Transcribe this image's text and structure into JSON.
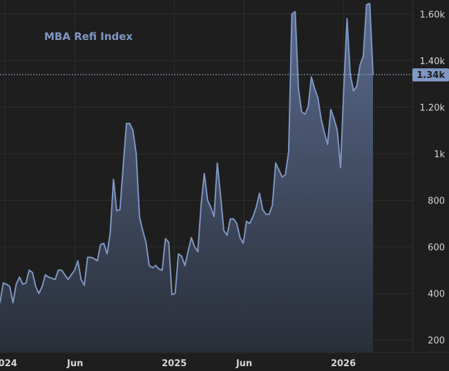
{
  "chart_data": {
    "type": "area",
    "title": "MBA Refi Index",
    "xlabel": "",
    "ylabel": "",
    "ylim": [
      150,
      1660
    ],
    "xlim": [
      "2023-12-22",
      "2026-05-30"
    ],
    "grid": true,
    "last_value_label": "1.34k",
    "last_value": 1340,
    "colors": {
      "line": "#7f97c4",
      "fill_top": "#5a6a8e",
      "fill_bottom": "#2a2f3a",
      "grid": "#2e2e2e",
      "background": "#1e1e1e",
      "badge": "#7f97c4"
    },
    "yticks": [
      {
        "value": 200,
        "label": "200"
      },
      {
        "value": 400,
        "label": "400"
      },
      {
        "value": 600,
        "label": "600"
      },
      {
        "value": 800,
        "label": "800"
      },
      {
        "value": 1000,
        "label": "1k"
      },
      {
        "value": 1200,
        "label": "1.20k"
      },
      {
        "value": 1400,
        "label": "1.40k"
      },
      {
        "value": 1600,
        "label": "1.60k"
      }
    ],
    "xticks": [
      {
        "date": "2024-01-01",
        "label": "2024"
      },
      {
        "date": "2024-06-01",
        "label": "Jun"
      },
      {
        "date": "2025-01-01",
        "label": "2025"
      },
      {
        "date": "2025-06-01",
        "label": "Jun"
      },
      {
        "date": "2026-01-01",
        "label": "2026"
      }
    ],
    "series": [
      {
        "points": [
          [
            "2023-12-22",
            360
          ],
          [
            "2023-12-29",
            445
          ],
          [
            "2024-01-05",
            440
          ],
          [
            "2024-01-12",
            430
          ],
          [
            "2024-01-19",
            360
          ],
          [
            "2024-01-26",
            440
          ],
          [
            "2024-02-02",
            470
          ],
          [
            "2024-02-09",
            440
          ],
          [
            "2024-02-16",
            445
          ],
          [
            "2024-02-23",
            500
          ],
          [
            "2024-03-01",
            490
          ],
          [
            "2024-03-08",
            430
          ],
          [
            "2024-03-15",
            400
          ],
          [
            "2024-03-22",
            430
          ],
          [
            "2024-03-29",
            480
          ],
          [
            "2024-04-05",
            470
          ],
          [
            "2024-04-12",
            465
          ],
          [
            "2024-04-19",
            460
          ],
          [
            "2024-04-26",
            500
          ],
          [
            "2024-05-03",
            500
          ],
          [
            "2024-05-10",
            480
          ],
          [
            "2024-05-17",
            460
          ],
          [
            "2024-05-24",
            480
          ],
          [
            "2024-05-31",
            500
          ],
          [
            "2024-06-07",
            540
          ],
          [
            "2024-06-14",
            460
          ],
          [
            "2024-06-21",
            435
          ],
          [
            "2024-06-28",
            555
          ],
          [
            "2024-07-05",
            555
          ],
          [
            "2024-07-12",
            550
          ],
          [
            "2024-07-19",
            540
          ],
          [
            "2024-07-26",
            610
          ],
          [
            "2024-08-02",
            615
          ],
          [
            "2024-08-09",
            570
          ],
          [
            "2024-08-16",
            660
          ],
          [
            "2024-08-23",
            890
          ],
          [
            "2024-08-30",
            755
          ],
          [
            "2024-09-06",
            760
          ],
          [
            "2024-09-13",
            950
          ],
          [
            "2024-09-20",
            1130
          ],
          [
            "2024-09-27",
            1130
          ],
          [
            "2024-10-04",
            1100
          ],
          [
            "2024-10-11",
            1000
          ],
          [
            "2024-10-18",
            730
          ],
          [
            "2024-10-25",
            670
          ],
          [
            "2024-11-01",
            620
          ],
          [
            "2024-11-08",
            520
          ],
          [
            "2024-11-15",
            510
          ],
          [
            "2024-11-22",
            520
          ],
          [
            "2024-11-29",
            505
          ],
          [
            "2024-12-06",
            500
          ],
          [
            "2024-12-13",
            635
          ],
          [
            "2024-12-20",
            620
          ],
          [
            "2024-12-27",
            395
          ],
          [
            "2025-01-03",
            400
          ],
          [
            "2025-01-10",
            570
          ],
          [
            "2025-01-17",
            560
          ],
          [
            "2025-01-24",
            520
          ],
          [
            "2025-01-31",
            580
          ],
          [
            "2025-02-07",
            640
          ],
          [
            "2025-02-14",
            600
          ],
          [
            "2025-02-21",
            580
          ],
          [
            "2025-02-28",
            780
          ],
          [
            "2025-03-07",
            915
          ],
          [
            "2025-03-14",
            800
          ],
          [
            "2025-03-21",
            770
          ],
          [
            "2025-03-28",
            730
          ],
          [
            "2025-04-04",
            960
          ],
          [
            "2025-04-11",
            820
          ],
          [
            "2025-04-18",
            670
          ],
          [
            "2025-04-25",
            650
          ],
          [
            "2025-05-02",
            720
          ],
          [
            "2025-05-09",
            720
          ],
          [
            "2025-05-16",
            700
          ],
          [
            "2025-05-23",
            640
          ],
          [
            "2025-05-30",
            615
          ],
          [
            "2025-06-06",
            710
          ],
          [
            "2025-06-13",
            700
          ],
          [
            "2025-06-20",
            730
          ],
          [
            "2025-06-27",
            770
          ],
          [
            "2025-07-04",
            830
          ],
          [
            "2025-07-11",
            760
          ],
          [
            "2025-07-18",
            740
          ],
          [
            "2025-07-25",
            740
          ],
          [
            "2025-08-01",
            780
          ],
          [
            "2025-08-08",
            960
          ],
          [
            "2025-08-15",
            930
          ],
          [
            "2025-08-22",
            900
          ],
          [
            "2025-08-29",
            910
          ],
          [
            "2025-09-05",
            1010
          ],
          [
            "2025-09-12",
            1600
          ],
          [
            "2025-09-19",
            1610
          ],
          [
            "2025-09-26",
            1280
          ],
          [
            "2025-10-03",
            1180
          ],
          [
            "2025-10-10",
            1170
          ],
          [
            "2025-10-17",
            1200
          ],
          [
            "2025-10-24",
            1330
          ],
          [
            "2025-10-31",
            1280
          ],
          [
            "2025-11-07",
            1240
          ],
          [
            "2025-11-14",
            1150
          ],
          [
            "2025-11-21",
            1090
          ],
          [
            "2025-11-28",
            1040
          ],
          [
            "2025-12-05",
            1190
          ],
          [
            "2025-12-12",
            1150
          ],
          [
            "2025-12-19",
            1100
          ],
          [
            "2025-12-26",
            940
          ],
          [
            "2026-01-02",
            1280
          ],
          [
            "2026-01-09",
            1580
          ],
          [
            "2026-01-16",
            1340
          ],
          [
            "2026-01-23",
            1270
          ],
          [
            "2026-01-30",
            1290
          ],
          [
            "2026-02-06",
            1380
          ],
          [
            "2026-02-13",
            1420
          ],
          [
            "2026-02-20",
            1640
          ],
          [
            "2026-02-27",
            1645
          ],
          [
            "2026-03-06",
            1340
          ]
        ]
      }
    ]
  }
}
